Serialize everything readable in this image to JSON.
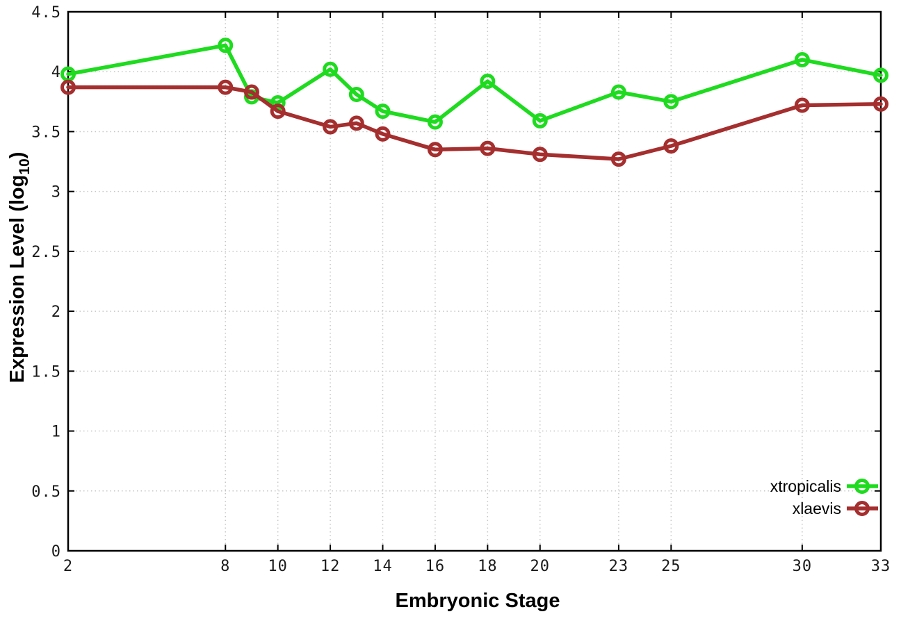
{
  "labels": {
    "xlabel": "Embryonic Stage",
    "ylabel_main": "Expression Level (log",
    "ylabel_sub": "10",
    "ylabel_close": ")"
  },
  "chart_data": {
    "type": "line",
    "title": "",
    "xlabel": "Embryonic Stage",
    "ylabel": "Expression Level (log10)",
    "xlim": [
      2,
      33
    ],
    "ylim": [
      0,
      4.5
    ],
    "x_ticks": [
      2,
      8,
      10,
      12,
      14,
      16,
      18,
      20,
      23,
      25,
      30,
      33
    ],
    "y_ticks": [
      0,
      0.5,
      1,
      1.5,
      2,
      2.5,
      3,
      3.5,
      4,
      4.5
    ],
    "grid": true,
    "legend_position": "bottom-right",
    "x": [
      2,
      8,
      9,
      10,
      12,
      13,
      14,
      16,
      18,
      20,
      23,
      25,
      30,
      33
    ],
    "series": [
      {
        "name": "xtropicalis",
        "color": "#1fdb1f",
        "values": [
          3.98,
          4.22,
          3.79,
          3.74,
          4.02,
          3.81,
          3.67,
          3.58,
          3.92,
          3.59,
          3.83,
          3.75,
          4.1,
          3.97
        ]
      },
      {
        "name": "xlaevis",
        "color": "#a52e2e",
        "values": [
          3.87,
          3.87,
          3.83,
          3.67,
          3.54,
          3.57,
          3.48,
          3.35,
          3.36,
          3.31,
          3.27,
          3.38,
          3.72,
          3.73
        ]
      }
    ],
    "style": {
      "grid_color": "#c6c6c6",
      "border_color": "#000000",
      "background": "#ffffff",
      "line_width": 5.5,
      "marker_radius": 8.5,
      "marker_stroke": 5
    }
  }
}
